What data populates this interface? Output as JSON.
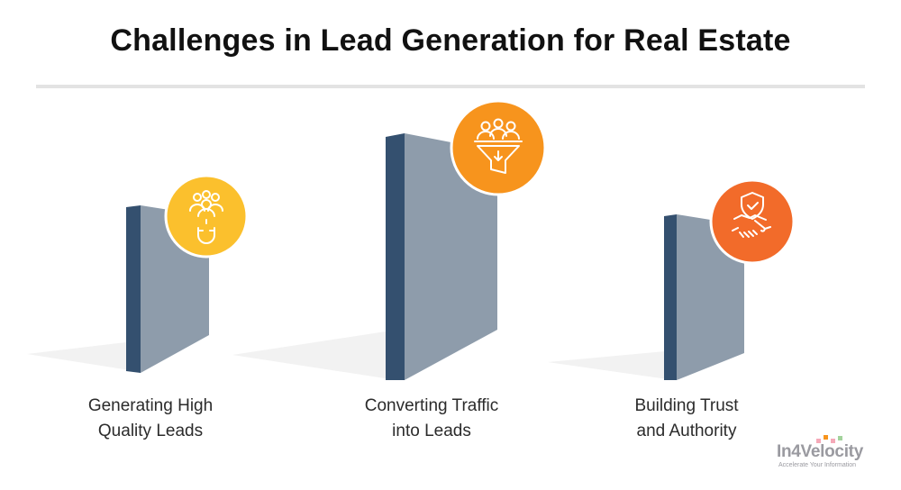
{
  "title": "Challenges in Lead Generation for Real Estate",
  "challenges": [
    {
      "line1": "Generating High",
      "line2": "Quality Leads",
      "icon": "people-magnet-icon",
      "color": "#FBC02D"
    },
    {
      "line1": "Converting Traffic",
      "line2": "into Leads",
      "icon": "people-funnel-icon",
      "color": "#F7941D"
    },
    {
      "line1": "Building Trust",
      "line2": "and Authority",
      "icon": "shield-handshake-icon",
      "color": "#F26B2A"
    }
  ],
  "colors": {
    "wall_front": "#8E9CAB",
    "wall_side": "#34506F",
    "shadow": "#F2F2F2"
  },
  "logo": {
    "name": "In4Velocity",
    "tagline": "Accelerate Your Information"
  }
}
